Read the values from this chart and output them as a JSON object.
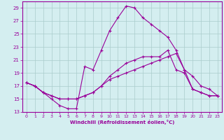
{
  "xlabel": "Windchill (Refroidissement éolien,°C)",
  "bg_color": "#d4eef0",
  "grid_color": "#aacccc",
  "line_color": "#990099",
  "xlim": [
    -0.5,
    23.5
  ],
  "ylim": [
    13,
    30
  ],
  "yticks": [
    13,
    15,
    17,
    19,
    21,
    23,
    25,
    27,
    29
  ],
  "xticks": [
    0,
    1,
    2,
    3,
    4,
    5,
    6,
    7,
    8,
    9,
    10,
    11,
    12,
    13,
    14,
    15,
    16,
    17,
    18,
    19,
    20,
    21,
    22,
    23
  ],
  "line1_x": [
    0,
    1,
    2,
    3,
    4,
    5,
    6,
    7,
    8,
    9,
    10,
    11,
    12,
    13,
    14,
    15,
    16,
    17,
    18,
    19,
    20,
    21,
    22,
    23
  ],
  "line1_y": [
    17.5,
    17.0,
    16.0,
    15.0,
    14.0,
    13.5,
    13.5,
    20.0,
    19.5,
    22.5,
    25.5,
    27.5,
    29.3,
    29.0,
    27.5,
    26.5,
    25.5,
    24.5,
    22.5,
    19.5,
    18.5,
    17.0,
    16.5,
    15.5
  ],
  "line2_x": [
    0,
    1,
    2,
    3,
    4,
    5,
    6,
    7,
    8,
    9,
    10,
    11,
    12,
    13,
    14,
    15,
    16,
    17,
    18,
    19,
    20,
    21,
    22,
    23
  ],
  "line2_y": [
    17.5,
    17.0,
    16.0,
    15.5,
    15.0,
    15.0,
    15.0,
    15.5,
    16.0,
    17.0,
    18.5,
    19.5,
    20.5,
    21.0,
    21.5,
    21.5,
    21.5,
    22.5,
    19.5,
    19.0,
    16.5,
    16.0,
    15.5,
    15.5
  ],
  "line3_x": [
    0,
    1,
    2,
    3,
    4,
    5,
    6,
    7,
    8,
    9,
    10,
    11,
    12,
    13,
    14,
    15,
    16,
    17,
    18,
    19,
    20,
    21,
    22,
    23
  ],
  "line3_y": [
    17.5,
    17.0,
    16.0,
    15.5,
    15.0,
    15.0,
    15.0,
    15.5,
    16.0,
    17.0,
    18.0,
    18.5,
    19.0,
    19.5,
    20.0,
    20.5,
    21.0,
    21.5,
    22.0,
    19.5,
    16.5,
    16.0,
    15.5,
    15.5
  ]
}
